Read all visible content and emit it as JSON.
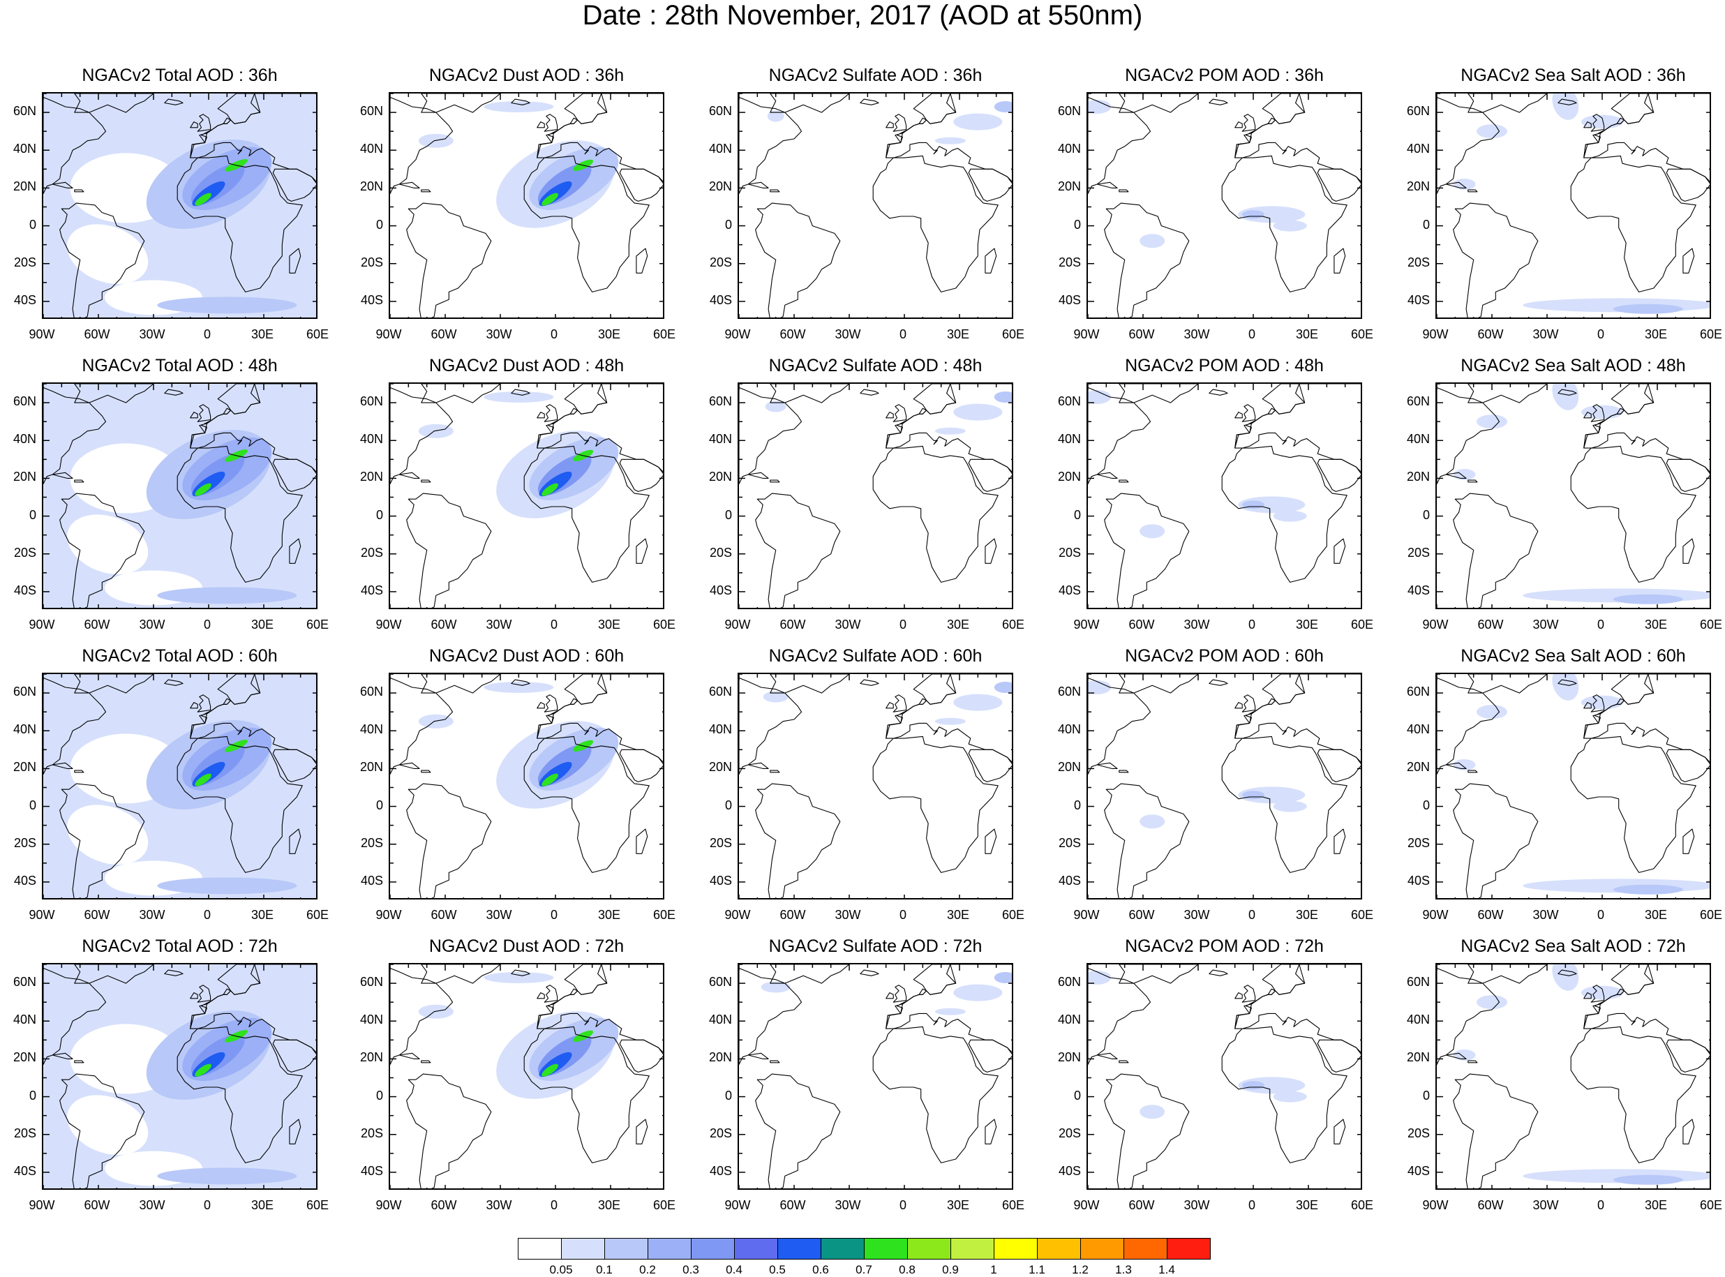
{
  "title": "Date : 28th November, 2017 (AOD at 550nm)",
  "panel_titles": [
    [
      "NGACv2 Total AOD : 36h",
      "NGACv2 Dust AOD : 36h",
      "NGACv2 Sulfate AOD : 36h",
      "NGACv2 POM AOD : 36h",
      "NGACv2 Sea Salt AOD : 36h"
    ],
    [
      "NGACv2 Total AOD : 48h",
      "NGACv2 Dust AOD : 48h",
      "NGACv2 Sulfate AOD : 48h",
      "NGACv2 POM AOD : 48h",
      "NGACv2 Sea Salt AOD : 48h"
    ],
    [
      "NGACv2 Total AOD : 60h",
      "NGACv2 Dust AOD : 60h",
      "NGACv2 Sulfate AOD : 60h",
      "NGACv2 POM AOD : 60h",
      "NGACv2 Sea Salt AOD : 60h"
    ],
    [
      "NGACv2 Total AOD : 72h",
      "NGACv2 Dust AOD : 72h",
      "NGACv2 Sulfate AOD : 72h",
      "NGACv2 POM AOD : 72h",
      "NGACv2 Sea Salt  AOD : 72h"
    ]
  ],
  "latitude_ticks": [
    "60N",
    "40N",
    "20N",
    "0",
    "20S",
    "40S"
  ],
  "longitude_ticks": [
    "90W",
    "60W",
    "30W",
    "0",
    "30E",
    "60E"
  ],
  "map_domain": {
    "lon_range": [
      -90,
      60
    ],
    "lat_range": [
      -50,
      70
    ]
  },
  "colorbar": {
    "labels": [
      "0.05",
      "0.1",
      "0.2",
      "0.3",
      "0.4",
      "0.5",
      "0.6",
      "0.7",
      "0.8",
      "0.9",
      "1",
      "1.1",
      "1.2",
      "1.3",
      "1.4"
    ],
    "colors": [
      "#ffffff",
      "#d6e0fc",
      "#b8c8f8",
      "#9bb0f6",
      "#7f98f4",
      "#5f6cf0",
      "#1e5cf2",
      "#0a9484",
      "#2ee21e",
      "#8ce81a",
      "#c2f040",
      "#ffff00",
      "#ffc000",
      "#ff9a00",
      "#ff6800",
      "#ff1e10"
    ]
  },
  "colors": {
    "land_outline": "#000000",
    "low_aod": "#d6e0fc",
    "mid_aod": "#9bb0f6",
    "dust_core": "#2ee21e"
  }
}
